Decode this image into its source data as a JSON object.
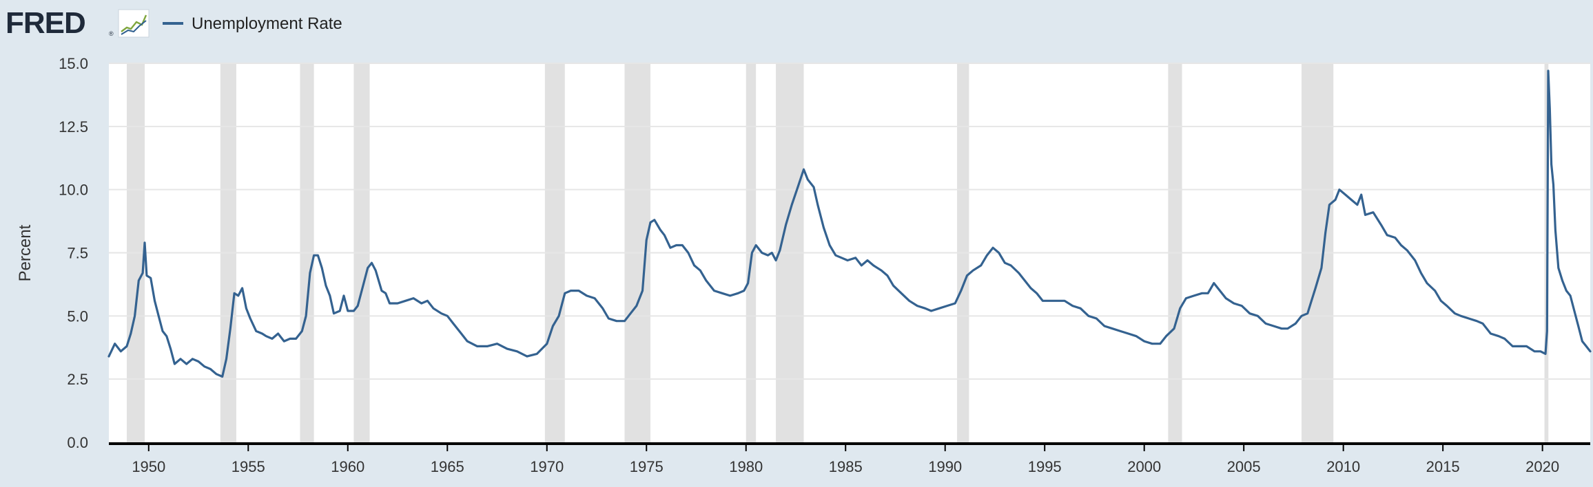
{
  "header": {
    "logo_text": "FRED",
    "logo_mark": "®",
    "legend_label": "Unemployment Rate"
  },
  "colors": {
    "background": "#dfe8ef",
    "plot_background": "#ffffff",
    "series": "#346290",
    "recession": "#e1e1e1",
    "grid": "#e6e6e6",
    "axis": "#000000",
    "logo": "#1f2a3a"
  },
  "icons": {
    "logo_graph": "line-graph-icon"
  },
  "chart_data": {
    "type": "line",
    "ylabel": "Percent",
    "xlabel": "",
    "ylim": [
      0,
      15
    ],
    "yticks": [
      "0.0",
      "2.5",
      "5.0",
      "7.5",
      "10.0",
      "12.5",
      "15.0"
    ],
    "xticks": [
      "1950",
      "1955",
      "1960",
      "1965",
      "1970",
      "1975",
      "1980",
      "1985",
      "1990",
      "1995",
      "2000",
      "2005",
      "2010",
      "2015",
      "2020"
    ],
    "x_range": [
      1948.0,
      2022.4
    ],
    "grid": true,
    "legend_placement": "top-left",
    "recessions": [
      [
        1948.9,
        1949.8
      ],
      [
        1953.6,
        1954.4
      ],
      [
        1957.6,
        1958.3
      ],
      [
        1960.3,
        1961.1
      ],
      [
        1969.9,
        1970.9
      ],
      [
        1973.9,
        1975.2
      ],
      [
        1980.0,
        1980.5
      ],
      [
        1981.5,
        1982.9
      ],
      [
        1990.6,
        1991.2
      ],
      [
        2001.2,
        2001.9
      ],
      [
        2007.9,
        2009.5
      ],
      [
        2020.1,
        2020.3
      ]
    ],
    "series": [
      {
        "name": "Unemployment Rate",
        "points": [
          [
            1948.0,
            3.4
          ],
          [
            1948.3,
            3.9
          ],
          [
            1948.6,
            3.6
          ],
          [
            1948.9,
            3.8
          ],
          [
            1949.1,
            4.3
          ],
          [
            1949.3,
            5.0
          ],
          [
            1949.5,
            6.4
          ],
          [
            1949.7,
            6.7
          ],
          [
            1949.8,
            7.9
          ],
          [
            1949.9,
            6.6
          ],
          [
            1950.1,
            6.5
          ],
          [
            1950.3,
            5.6
          ],
          [
            1950.5,
            5.0
          ],
          [
            1950.7,
            4.4
          ],
          [
            1950.9,
            4.2
          ],
          [
            1951.1,
            3.7
          ],
          [
            1951.3,
            3.1
          ],
          [
            1951.6,
            3.3
          ],
          [
            1951.9,
            3.1
          ],
          [
            1952.2,
            3.3
          ],
          [
            1952.5,
            3.2
          ],
          [
            1952.8,
            3.0
          ],
          [
            1953.1,
            2.9
          ],
          [
            1953.4,
            2.7
          ],
          [
            1953.7,
            2.6
          ],
          [
            1953.9,
            3.3
          ],
          [
            1954.1,
            4.5
          ],
          [
            1954.3,
            5.9
          ],
          [
            1954.5,
            5.8
          ],
          [
            1954.7,
            6.1
          ],
          [
            1954.9,
            5.3
          ],
          [
            1955.1,
            4.9
          ],
          [
            1955.4,
            4.4
          ],
          [
            1955.7,
            4.3
          ],
          [
            1955.9,
            4.2
          ],
          [
            1956.2,
            4.1
          ],
          [
            1956.5,
            4.3
          ],
          [
            1956.8,
            4.0
          ],
          [
            1957.1,
            4.1
          ],
          [
            1957.4,
            4.1
          ],
          [
            1957.7,
            4.4
          ],
          [
            1957.9,
            5.0
          ],
          [
            1958.1,
            6.7
          ],
          [
            1958.3,
            7.4
          ],
          [
            1958.5,
            7.4
          ],
          [
            1958.7,
            6.9
          ],
          [
            1958.9,
            6.2
          ],
          [
            1959.1,
            5.8
          ],
          [
            1959.3,
            5.1
          ],
          [
            1959.6,
            5.2
          ],
          [
            1959.8,
            5.8
          ],
          [
            1960.0,
            5.2
          ],
          [
            1960.3,
            5.2
          ],
          [
            1960.5,
            5.4
          ],
          [
            1960.8,
            6.3
          ],
          [
            1961.0,
            6.9
          ],
          [
            1961.2,
            7.1
          ],
          [
            1961.4,
            6.8
          ],
          [
            1961.7,
            6.0
          ],
          [
            1961.9,
            5.9
          ],
          [
            1962.1,
            5.5
          ],
          [
            1962.5,
            5.5
          ],
          [
            1962.9,
            5.6
          ],
          [
            1963.3,
            5.7
          ],
          [
            1963.7,
            5.5
          ],
          [
            1964.0,
            5.6
          ],
          [
            1964.3,
            5.3
          ],
          [
            1964.7,
            5.1
          ],
          [
            1965.0,
            5.0
          ],
          [
            1965.3,
            4.7
          ],
          [
            1965.7,
            4.3
          ],
          [
            1966.0,
            4.0
          ],
          [
            1966.5,
            3.8
          ],
          [
            1967.0,
            3.8
          ],
          [
            1967.5,
            3.9
          ],
          [
            1968.0,
            3.7
          ],
          [
            1968.5,
            3.6
          ],
          [
            1969.0,
            3.4
          ],
          [
            1969.5,
            3.5
          ],
          [
            1970.0,
            3.9
          ],
          [
            1970.3,
            4.6
          ],
          [
            1970.6,
            5.0
          ],
          [
            1970.9,
            5.9
          ],
          [
            1971.2,
            6.0
          ],
          [
            1971.6,
            6.0
          ],
          [
            1972.0,
            5.8
          ],
          [
            1972.4,
            5.7
          ],
          [
            1972.8,
            5.3
          ],
          [
            1973.1,
            4.9
          ],
          [
            1973.5,
            4.8
          ],
          [
            1973.9,
            4.8
          ],
          [
            1974.2,
            5.1
          ],
          [
            1974.5,
            5.4
          ],
          [
            1974.8,
            6.0
          ],
          [
            1975.0,
            8.0
          ],
          [
            1975.2,
            8.7
          ],
          [
            1975.4,
            8.8
          ],
          [
            1975.7,
            8.4
          ],
          [
            1975.9,
            8.2
          ],
          [
            1976.2,
            7.7
          ],
          [
            1976.5,
            7.8
          ],
          [
            1976.8,
            7.8
          ],
          [
            1977.1,
            7.5
          ],
          [
            1977.4,
            7.0
          ],
          [
            1977.7,
            6.8
          ],
          [
            1978.0,
            6.4
          ],
          [
            1978.4,
            6.0
          ],
          [
            1978.8,
            5.9
          ],
          [
            1979.2,
            5.8
          ],
          [
            1979.6,
            5.9
          ],
          [
            1979.9,
            6.0
          ],
          [
            1980.1,
            6.3
          ],
          [
            1980.3,
            7.5
          ],
          [
            1980.5,
            7.8
          ],
          [
            1980.8,
            7.5
          ],
          [
            1981.1,
            7.4
          ],
          [
            1981.3,
            7.5
          ],
          [
            1981.5,
            7.2
          ],
          [
            1981.7,
            7.6
          ],
          [
            1982.0,
            8.6
          ],
          [
            1982.3,
            9.4
          ],
          [
            1982.6,
            10.1
          ],
          [
            1982.9,
            10.8
          ],
          [
            1983.1,
            10.4
          ],
          [
            1983.4,
            10.1
          ],
          [
            1983.6,
            9.4
          ],
          [
            1983.9,
            8.5
          ],
          [
            1984.2,
            7.8
          ],
          [
            1984.5,
            7.4
          ],
          [
            1984.8,
            7.3
          ],
          [
            1985.1,
            7.2
          ],
          [
            1985.5,
            7.3
          ],
          [
            1985.8,
            7.0
          ],
          [
            1986.1,
            7.2
          ],
          [
            1986.4,
            7.0
          ],
          [
            1986.8,
            6.8
          ],
          [
            1987.1,
            6.6
          ],
          [
            1987.4,
            6.2
          ],
          [
            1987.8,
            5.9
          ],
          [
            1988.2,
            5.6
          ],
          [
            1988.6,
            5.4
          ],
          [
            1989.0,
            5.3
          ],
          [
            1989.3,
            5.2
          ],
          [
            1989.7,
            5.3
          ],
          [
            1990.1,
            5.4
          ],
          [
            1990.5,
            5.5
          ],
          [
            1990.8,
            6.0
          ],
          [
            1991.1,
            6.6
          ],
          [
            1991.4,
            6.8
          ],
          [
            1991.8,
            7.0
          ],
          [
            1992.1,
            7.4
          ],
          [
            1992.4,
            7.7
          ],
          [
            1992.7,
            7.5
          ],
          [
            1993.0,
            7.1
          ],
          [
            1993.3,
            7.0
          ],
          [
            1993.7,
            6.7
          ],
          [
            1994.0,
            6.4
          ],
          [
            1994.3,
            6.1
          ],
          [
            1994.6,
            5.9
          ],
          [
            1994.9,
            5.6
          ],
          [
            1995.2,
            5.6
          ],
          [
            1995.6,
            5.6
          ],
          [
            1996.0,
            5.6
          ],
          [
            1996.4,
            5.4
          ],
          [
            1996.8,
            5.3
          ],
          [
            1997.2,
            5.0
          ],
          [
            1997.6,
            4.9
          ],
          [
            1998.0,
            4.6
          ],
          [
            1998.4,
            4.5
          ],
          [
            1998.8,
            4.4
          ],
          [
            1999.2,
            4.3
          ],
          [
            1999.6,
            4.2
          ],
          [
            2000.0,
            4.0
          ],
          [
            2000.4,
            3.9
          ],
          [
            2000.8,
            3.9
          ],
          [
            2001.1,
            4.2
          ],
          [
            2001.5,
            4.5
          ],
          [
            2001.8,
            5.3
          ],
          [
            2002.1,
            5.7
          ],
          [
            2002.5,
            5.8
          ],
          [
            2002.9,
            5.9
          ],
          [
            2003.2,
            5.9
          ],
          [
            2003.5,
            6.3
          ],
          [
            2003.8,
            6.0
          ],
          [
            2004.1,
            5.7
          ],
          [
            2004.5,
            5.5
          ],
          [
            2004.9,
            5.4
          ],
          [
            2005.3,
            5.1
          ],
          [
            2005.7,
            5.0
          ],
          [
            2006.1,
            4.7
          ],
          [
            2006.5,
            4.6
          ],
          [
            2006.9,
            4.5
          ],
          [
            2007.2,
            4.5
          ],
          [
            2007.6,
            4.7
          ],
          [
            2007.9,
            5.0
          ],
          [
            2008.2,
            5.1
          ],
          [
            2008.4,
            5.6
          ],
          [
            2008.6,
            6.1
          ],
          [
            2008.9,
            6.9
          ],
          [
            2009.1,
            8.3
          ],
          [
            2009.3,
            9.4
          ],
          [
            2009.6,
            9.6
          ],
          [
            2009.8,
            10.0
          ],
          [
            2010.1,
            9.8
          ],
          [
            2010.4,
            9.6
          ],
          [
            2010.7,
            9.4
          ],
          [
            2010.9,
            9.8
          ],
          [
            2011.1,
            9.0
          ],
          [
            2011.5,
            9.1
          ],
          [
            2011.9,
            8.6
          ],
          [
            2012.2,
            8.2
          ],
          [
            2012.6,
            8.1
          ],
          [
            2012.9,
            7.8
          ],
          [
            2013.2,
            7.6
          ],
          [
            2013.6,
            7.2
          ],
          [
            2013.9,
            6.7
          ],
          [
            2014.2,
            6.3
          ],
          [
            2014.6,
            6.0
          ],
          [
            2014.9,
            5.6
          ],
          [
            2015.2,
            5.4
          ],
          [
            2015.6,
            5.1
          ],
          [
            2015.9,
            5.0
          ],
          [
            2016.3,
            4.9
          ],
          [
            2016.7,
            4.8
          ],
          [
            2017.0,
            4.7
          ],
          [
            2017.4,
            4.3
          ],
          [
            2017.8,
            4.2
          ],
          [
            2018.1,
            4.1
          ],
          [
            2018.5,
            3.8
          ],
          [
            2018.9,
            3.8
          ],
          [
            2019.2,
            3.8
          ],
          [
            2019.6,
            3.6
          ],
          [
            2019.9,
            3.6
          ],
          [
            2020.15,
            3.5
          ],
          [
            2020.23,
            4.4
          ],
          [
            2020.29,
            14.7
          ],
          [
            2020.37,
            13.2
          ],
          [
            2020.45,
            11.0
          ],
          [
            2020.55,
            10.2
          ],
          [
            2020.65,
            8.4
          ],
          [
            2020.8,
            6.9
          ],
          [
            2021.0,
            6.4
          ],
          [
            2021.2,
            6.0
          ],
          [
            2021.4,
            5.8
          ],
          [
            2021.6,
            5.2
          ],
          [
            2021.8,
            4.6
          ],
          [
            2022.0,
            4.0
          ],
          [
            2022.2,
            3.8
          ],
          [
            2022.4,
            3.6
          ]
        ]
      }
    ]
  }
}
